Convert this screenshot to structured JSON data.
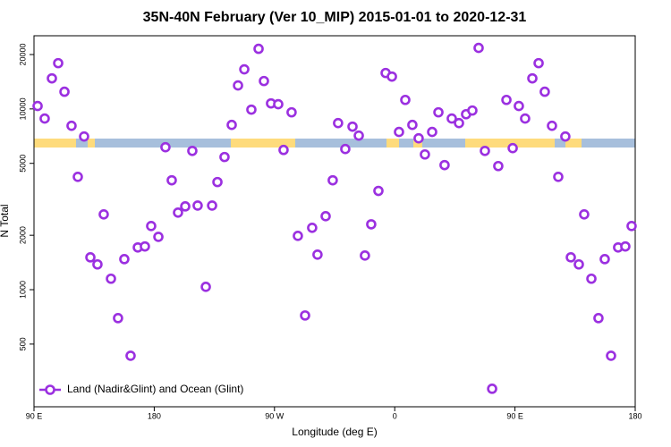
{
  "chart_data": {
    "type": "scatter",
    "title": "35N-40N February (Ver 10_MIP)   2015-01-01 to 2020-12-31",
    "x_label": "Longitude (deg E)",
    "y_label": "N Total",
    "log_y": true,
    "legend_position": "bottom-left",
    "xlim": [
      90,
      540
    ],
    "ylim": [
      225,
      25400
    ],
    "xticks": [
      {
        "value": 90,
        "label": "90 E"
      },
      180,
      {
        "value": 270,
        "label": "90 W"
      },
      {
        "value": 360,
        "label": "0"
      },
      {
        "value": 450,
        "label": "90 E"
      },
      {
        "value": 540,
        "label": "180"
      }
    ],
    "yticks": [
      500,
      1000,
      2000,
      5000,
      10000,
      20000
    ],
    "series": [
      {
        "name": "Land (Nadir&Glint) and Ocean (Glint)",
        "color": "#9b30e0",
        "x": [
          92.7,
          98.0,
          103.4,
          108.1,
          112.8,
          118.1,
          122.8,
          127.5,
          132.2,
          137.5,
          142.2,
          147.6,
          152.9,
          157.6,
          162.3,
          167.7,
          173.0,
          177.7,
          183.1,
          188.4,
          193.1,
          197.8,
          203.2,
          208.5,
          212.5,
          218.6,
          223.3,
          227.3,
          232.6,
          238.0,
          242.7,
          247.4,
          252.7,
          258.1,
          262.1,
          267.4,
          272.8,
          276.8,
          282.8,
          287.5,
          292.9,
          298.2,
          302.2,
          308.3,
          313.6,
          317.6,
          323.0,
          328.4,
          333.1,
          337.7,
          342.4,
          347.8,
          353.2,
          357.9,
          363.2,
          367.9,
          373.2,
          377.9,
          382.6,
          388.0,
          392.7,
          397.3,
          402.7,
          408.1,
          413.4,
          418.1,
          422.8,
          427.5,
          432.9,
          437.5,
          443.6,
          448.3,
          452.9,
          457.6,
          463.0,
          467.7,
          472.3,
          477.7,
          482.4,
          487.7,
          491.8,
          497.8,
          501.8,
          507.2,
          512.5,
          517.2,
          521.9,
          527.2,
          532.6,
          537.3
        ],
        "values": [
          10380,
          8850,
          14760,
          17920,
          12450,
          8070,
          4210,
          7040,
          1510,
          1380,
          2610,
          1150,
          696,
          1476,
          431,
          1713,
          1735,
          2250,
          1960,
          6140,
          4030,
          2670,
          2890,
          5860,
          2920,
          1037,
          2920,
          3940,
          5420,
          8160,
          13490,
          16560,
          9910,
          21510,
          14270,
          10730,
          10620,
          5930,
          9580,
          1985,
          720,
          2200,
          1563,
          2550,
          4030,
          8350,
          6000,
          7980,
          7120,
          1545,
          2300,
          3520,
          15810,
          15100,
          7460,
          11220,
          8160,
          6880,
          5600,
          7460,
          9580,
          4890,
          8850,
          8350,
          9350,
          9800,
          21760,
          5860,
          283,
          4830,
          11220,
          6070,
          10380,
          8850,
          14760,
          17920,
          12450,
          8070,
          4210,
          7040,
          1510,
          1380,
          2610,
          1150,
          696,
          1476,
          431,
          1713,
          1735,
          2250
        ]
      }
    ]
  }
}
